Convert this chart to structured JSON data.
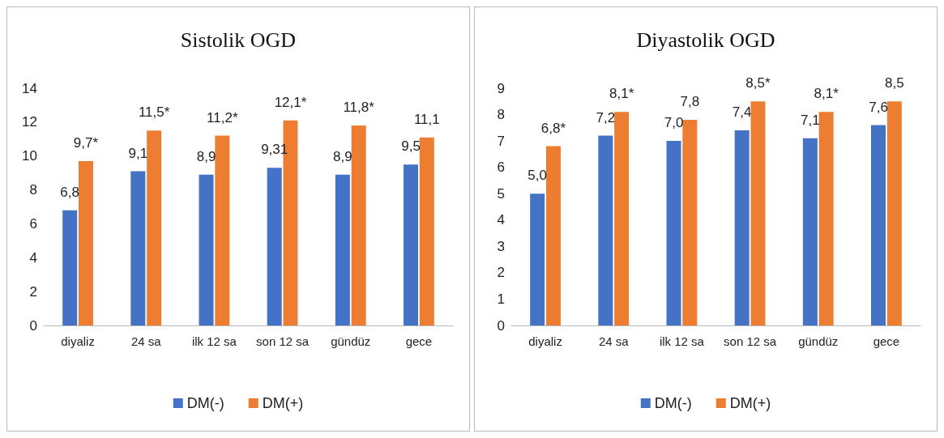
{
  "chart_data": [
    {
      "type": "bar",
      "title": "Sistolik OGD",
      "categories": [
        "diyaliz",
        "24 sa",
        "ilk 12 sa",
        "son 12 sa",
        "gündüz",
        "gece"
      ],
      "ylim": [
        0,
        14
      ],
      "yticks": [
        0,
        2,
        4,
        6,
        8,
        10,
        12,
        14
      ],
      "grid": false,
      "legend": "bottom",
      "series": [
        {
          "name": "DM(-)",
          "color": "#4472c4",
          "values": [
            6.8,
            9.1,
            8.9,
            9.31,
            8.9,
            9.5
          ],
          "value_labels": [
            "6,8",
            "9,1",
            "8,9",
            "9,31",
            "8,9",
            "9,5"
          ]
        },
        {
          "name": "DM(+)",
          "color": "#ed7d31",
          "values": [
            9.7,
            11.5,
            11.2,
            12.1,
            11.8,
            11.1
          ],
          "value_labels": [
            "9,7*",
            "11,5*",
            "11,2*",
            "12,1*",
            "11,8*",
            "11,1"
          ]
        }
      ]
    },
    {
      "type": "bar",
      "title": "Diyastolik OGD",
      "categories": [
        "diyaliz",
        "24 sa",
        "ilk 12 sa",
        "son 12 sa",
        "gündüz",
        "gece"
      ],
      "ylim": [
        0,
        9
      ],
      "yticks": [
        0,
        1,
        2,
        3,
        4,
        5,
        6,
        7,
        8,
        9
      ],
      "grid": false,
      "legend": "bottom",
      "series": [
        {
          "name": "DM(-)",
          "color": "#4472c4",
          "values": [
            5.0,
            7.2,
            7.0,
            7.4,
            7.1,
            7.6
          ],
          "value_labels": [
            "5,0",
            "7,2",
            "7,0",
            "7,4",
            "7,1",
            "7,6"
          ]
        },
        {
          "name": "DM(+)",
          "color": "#ed7d31",
          "values": [
            6.8,
            8.1,
            7.8,
            8.5,
            8.1,
            8.5
          ],
          "value_labels": [
            "6,8*",
            "8,1*",
            "7,8",
            "8,5*",
            "8,1*",
            "8,5"
          ]
        }
      ]
    }
  ]
}
